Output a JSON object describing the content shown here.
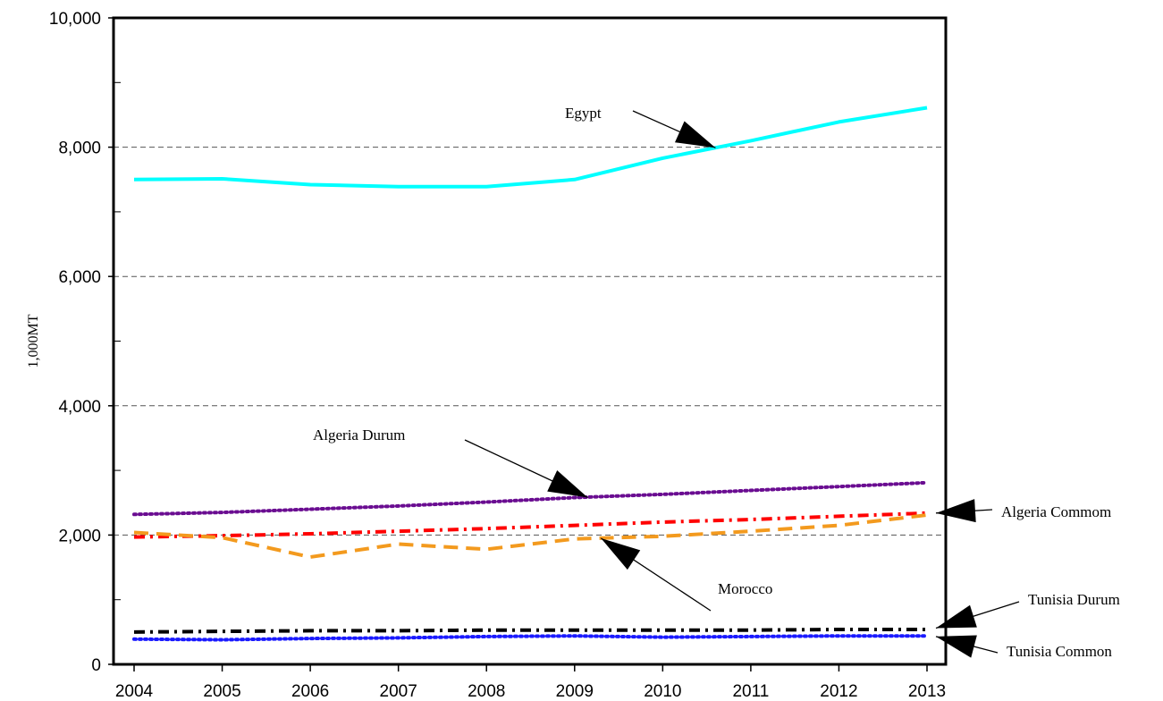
{
  "chart_data": {
    "type": "line",
    "title": "",
    "xlabel": "",
    "ylabel": "1,000MT",
    "x": [
      2004,
      2005,
      2006,
      2007,
      2008,
      2009,
      2010,
      2011,
      2012,
      2013
    ],
    "xlim": [
      2004,
      2013
    ],
    "ylim": [
      0,
      10000
    ],
    "y_ticks": [
      "0",
      "2,000",
      "4,000",
      "6,000",
      "8,000",
      "10,000"
    ],
    "y_tick_values": [
      0,
      2000,
      4000,
      6000,
      8000,
      10000
    ],
    "grid": "horizontal dashed at labeled y ticks",
    "legend": "none (arrow annotations)",
    "series": [
      {
        "name": "Egypt",
        "color": "#00ffff",
        "style": "solid",
        "values": [
          7500,
          7510,
          7420,
          7390,
          7390,
          7500,
          7830,
          8100,
          8390,
          8610
        ]
      },
      {
        "name": "Algeria Durum",
        "color": "#6a0d91",
        "style": "dotted",
        "values": [
          2320,
          2350,
          2400,
          2450,
          2510,
          2580,
          2630,
          2690,
          2750,
          2810
        ]
      },
      {
        "name": "Algeria Commom",
        "color": "#ff0000",
        "style": "dashdot",
        "values": [
          1970,
          1990,
          2020,
          2060,
          2100,
          2150,
          2200,
          2240,
          2290,
          2340
        ]
      },
      {
        "name": "Morocco",
        "color": "#f39a1e",
        "style": "dashed",
        "values": [
          2040,
          1960,
          1660,
          1860,
          1780,
          1940,
          1980,
          2060,
          2150,
          2310
        ]
      },
      {
        "name": "Tunisia Durum",
        "color": "#000000",
        "style": "dashdot",
        "values": [
          500,
          510,
          520,
          520,
          530,
          530,
          530,
          530,
          540,
          540
        ]
      },
      {
        "name": "Tunisia Common",
        "color": "#1a1aff",
        "style": "dotted",
        "values": [
          390,
          380,
          400,
          410,
          430,
          440,
          420,
          430,
          440,
          440
        ]
      }
    ],
    "annotations": [
      {
        "series": "Egypt",
        "text": "Egypt"
      },
      {
        "series": "Algeria Durum",
        "text": "Algeria Durum"
      },
      {
        "series": "Algeria Commom",
        "text": "Algeria Commom"
      },
      {
        "series": "Morocco",
        "text": "Morocco"
      },
      {
        "series": "Tunisia Durum",
        "text": "Tunisia Durum"
      },
      {
        "series": "Tunisia Common",
        "text": "Tunisia Common"
      }
    ]
  }
}
